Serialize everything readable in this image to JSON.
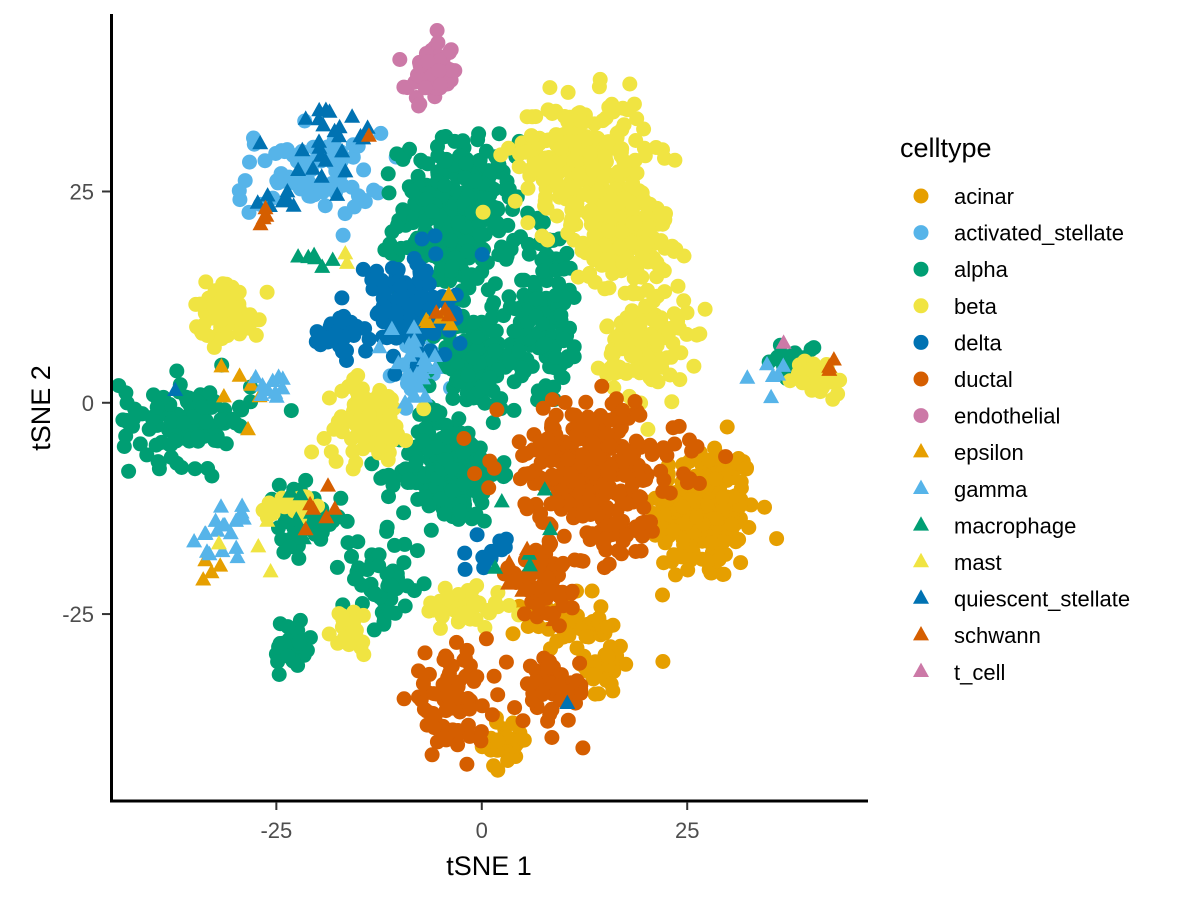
{
  "chart_data": {
    "type": "scatter",
    "title": "",
    "xlabel": "tSNE 1",
    "ylabel": "tSNE 2",
    "xlim": [
      -45,
      47
    ],
    "ylim": [
      -47,
      46
    ],
    "x_ticks": [
      -25,
      0,
      25
    ],
    "y_ticks": [
      -25,
      0,
      25
    ],
    "x_tick_labels": [
      "-25",
      "0",
      "25"
    ],
    "y_tick_labels": [
      "-25",
      "0",
      "25"
    ],
    "grid": false,
    "legend": {
      "title": "celltype",
      "position": "right"
    },
    "series": [
      {
        "name": "acinar",
        "color": "#E69F00",
        "shape": "circle",
        "clusters": [
          {
            "cx": 27,
            "cy": -13,
            "sx": 3.2,
            "sy": 4.2,
            "n": 230
          },
          {
            "cx": 10,
            "cy": -26,
            "sx": 2.5,
            "sy": 1.6,
            "n": 40
          },
          {
            "cx": 15,
            "cy": -31,
            "sx": 1.2,
            "sy": 2.2,
            "n": 35
          },
          {
            "cx": 3,
            "cy": -40,
            "sx": 1.4,
            "sy": 1.5,
            "n": 30
          }
        ]
      },
      {
        "name": "activated_stellate",
        "color": "#56B4E9",
        "shape": "circle",
        "clusters": [
          {
            "cx": -21,
            "cy": 27,
            "sx": 4.5,
            "sy": 2.5,
            "n": 70
          },
          {
            "cx": -8,
            "cy": 4,
            "sx": 1.5,
            "sy": 2.0,
            "n": 20
          }
        ]
      },
      {
        "name": "alpha",
        "color": "#009E73",
        "shape": "circle",
        "clusters": [
          {
            "cx": -3,
            "cy": 22,
            "sx": 3.5,
            "sy": 4.5,
            "n": 300
          },
          {
            "cx": -1,
            "cy": 5,
            "sx": 2.6,
            "sy": 2.8,
            "n": 150
          },
          {
            "cx": -4,
            "cy": -8,
            "sx": 3.0,
            "sy": 3.2,
            "n": 200
          },
          {
            "cx": 8,
            "cy": 11,
            "sx": 2.0,
            "sy": 5.0,
            "n": 120
          },
          {
            "cx": -36,
            "cy": -2,
            "sx": 4.0,
            "sy": 2.5,
            "n": 110
          },
          {
            "cx": -22,
            "cy": -14,
            "sx": 2.5,
            "sy": 2.0,
            "n": 50
          },
          {
            "cx": -12,
            "cy": -21,
            "sx": 2.5,
            "sy": 2.5,
            "n": 50
          },
          {
            "cx": -23,
            "cy": -29,
            "sx": 1.2,
            "sy": 1.8,
            "n": 35
          },
          {
            "cx": 38,
            "cy": 5,
            "sx": 1.5,
            "sy": 1.2,
            "n": 20
          }
        ]
      },
      {
        "name": "beta",
        "color": "#F0E442",
        "shape": "circle",
        "clusters": [
          {
            "cx": 12,
            "cy": 29,
            "sx": 4.0,
            "sy": 3.5,
            "n": 220
          },
          {
            "cx": 17,
            "cy": 20,
            "sx": 3.0,
            "sy": 3.0,
            "n": 200
          },
          {
            "cx": 20,
            "cy": 7,
            "sx": 2.5,
            "sy": 3.5,
            "n": 120
          },
          {
            "cx": -31,
            "cy": 11,
            "sx": 2.0,
            "sy": 1.8,
            "n": 70
          },
          {
            "cx": -14,
            "cy": -2,
            "sx": 2.5,
            "sy": 2.2,
            "n": 90
          },
          {
            "cx": 41,
            "cy": 3,
            "sx": 1.5,
            "sy": 1.0,
            "n": 40
          },
          {
            "cx": -2,
            "cy": -24,
            "sx": 2.5,
            "sy": 1.3,
            "n": 50
          },
          {
            "cx": -16,
            "cy": -27,
            "sx": 1.5,
            "sy": 1.5,
            "n": 20
          },
          {
            "cx": -23,
            "cy": -12,
            "sx": 2.0,
            "sy": 1.0,
            "n": 20
          }
        ]
      },
      {
        "name": "delta",
        "color": "#0072B2",
        "shape": "circle",
        "clusters": [
          {
            "cx": -9,
            "cy": 11,
            "sx": 2.5,
            "sy": 3.0,
            "n": 140
          },
          {
            "cx": -17,
            "cy": 8,
            "sx": 1.4,
            "sy": 1.2,
            "n": 30
          },
          {
            "cx": 1,
            "cy": -18,
            "sx": 1.0,
            "sy": 1.0,
            "n": 12
          }
        ]
      },
      {
        "name": "ductal",
        "color": "#D55E00",
        "shape": "circle",
        "clusters": [
          {
            "cx": 13,
            "cy": -7,
            "sx": 5.5,
            "sy": 3.5,
            "n": 260
          },
          {
            "cx": 8,
            "cy": -21,
            "sx": 2.5,
            "sy": 2.5,
            "n": 60
          },
          {
            "cx": -4,
            "cy": -35,
            "sx": 2.5,
            "sy": 2.5,
            "n": 80
          },
          {
            "cx": 9,
            "cy": -34,
            "sx": 2.0,
            "sy": 2.0,
            "n": 60
          },
          {
            "cx": 16,
            "cy": -14,
            "sx": 3.0,
            "sy": 3.0,
            "n": 50
          }
        ]
      },
      {
        "name": "endothelial",
        "color": "#CC79A7",
        "shape": "circle",
        "clusters": [
          {
            "cx": -6,
            "cy": 39,
            "sx": 1.5,
            "sy": 1.7,
            "n": 60
          }
        ]
      },
      {
        "name": "epsilon",
        "color": "#E69F00",
        "shape": "triangle",
        "clusters": [
          {
            "cx": -29,
            "cy": 2,
            "sx": 1.5,
            "sy": 2.0,
            "n": 6
          },
          {
            "cx": -33,
            "cy": -20,
            "sx": 1.0,
            "sy": 1.0,
            "n": 4
          },
          {
            "cx": -5,
            "cy": 10,
            "sx": 1.0,
            "sy": 1.5,
            "n": 5
          }
        ]
      },
      {
        "name": "gamma",
        "color": "#56B4E9",
        "shape": "triangle",
        "clusters": [
          {
            "cx": -31,
            "cy": -16,
            "sx": 2.0,
            "sy": 2.0,
            "n": 18
          },
          {
            "cx": -25,
            "cy": 2,
            "sx": 1.0,
            "sy": 0.8,
            "n": 10
          },
          {
            "cx": -8,
            "cy": 4,
            "sx": 1.5,
            "sy": 2.0,
            "n": 25
          },
          {
            "cx": 35,
            "cy": 4,
            "sx": 1.0,
            "sy": 1.0,
            "n": 6
          }
        ]
      },
      {
        "name": "macrophage",
        "color": "#009E73",
        "shape": "triangle",
        "clusters": [
          {
            "cx": -20,
            "cy": 17,
            "sx": 1.5,
            "sy": 0.5,
            "n": 6
          },
          {
            "cx": -22,
            "cy": -14,
            "sx": 2.0,
            "sy": 2.0,
            "n": 8
          },
          {
            "cx": 5,
            "cy": -18,
            "sx": 3.0,
            "sy": 3.0,
            "n": 6
          }
        ]
      },
      {
        "name": "mast",
        "color": "#F0E442",
        "shape": "triangle",
        "clusters": [
          {
            "cx": -17,
            "cy": 17,
            "sx": 0.5,
            "sy": 0.5,
            "n": 2
          },
          {
            "cx": -27,
            "cy": -17,
            "sx": 2.0,
            "sy": 2.0,
            "n": 4
          }
        ]
      },
      {
        "name": "quiescent_stellate",
        "color": "#0072B2",
        "shape": "triangle",
        "clusters": [
          {
            "cx": -19,
            "cy": 31,
            "sx": 3.5,
            "sy": 2.5,
            "n": 25
          },
          {
            "cx": -25,
            "cy": 24,
            "sx": 1.5,
            "sy": 1.0,
            "n": 8
          },
          {
            "cx": 10,
            "cy": -36,
            "sx": 0.5,
            "sy": 0.5,
            "n": 1
          },
          {
            "cx": -37,
            "cy": 1,
            "sx": 0.5,
            "sy": 0.5,
            "n": 1
          }
        ]
      },
      {
        "name": "schwann",
        "color": "#D55E00",
        "shape": "triangle",
        "clusters": [
          {
            "cx": -26,
            "cy": 22,
            "sx": 1.0,
            "sy": 0.5,
            "n": 4
          },
          {
            "cx": -14,
            "cy": 32,
            "sx": 0.5,
            "sy": 0.5,
            "n": 1
          },
          {
            "cx": -20,
            "cy": -12,
            "sx": 2.0,
            "sy": 2.0,
            "n": 6
          },
          {
            "cx": -5,
            "cy": 11,
            "sx": 1.0,
            "sy": 0.8,
            "n": 3
          },
          {
            "cx": 42,
            "cy": 4,
            "sx": 1.0,
            "sy": 0.8,
            "n": 3
          },
          {
            "cx": 6,
            "cy": -23,
            "sx": 2.0,
            "sy": 2.0,
            "n": 6
          }
        ]
      },
      {
        "name": "t_cell",
        "color": "#CC79A7",
        "shape": "triangle",
        "clusters": [
          {
            "cx": 37,
            "cy": 6,
            "sx": 0.5,
            "sy": 0.5,
            "n": 1
          }
        ]
      }
    ]
  }
}
